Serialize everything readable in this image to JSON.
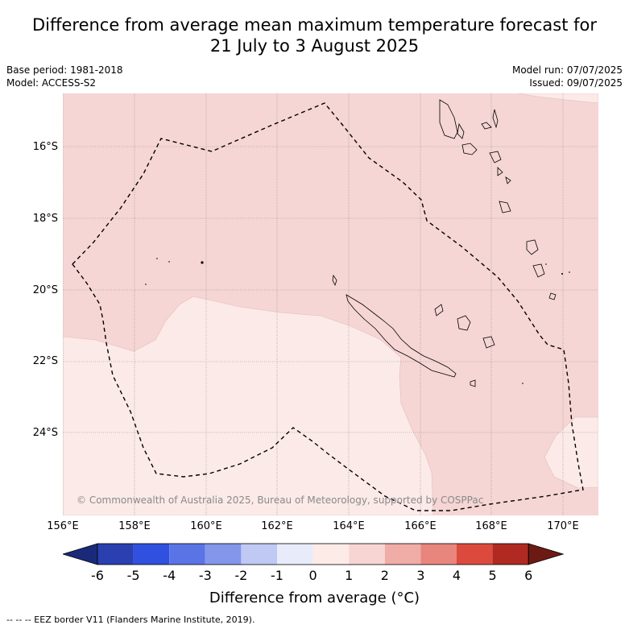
{
  "title_line1": "Difference from average mean maximum temperature forecast for",
  "title_line2": "21 July to 3 August 2025",
  "base_period": "Base period: 1981-2018",
  "model": "Model: ACCESS-S2",
  "model_run": "Model run: 07/07/2025",
  "issued": "Issued: 09/07/2025",
  "copyright": "© Commonwealth of Australia 2025, Bureau of Meteorology, supported by COSPPac",
  "lat_labels": [
    "16°S",
    "18°S",
    "20°S",
    "22°S",
    "24°S"
  ],
  "lon_labels": [
    "156°E",
    "158°E",
    "160°E",
    "162°E",
    "164°E",
    "166°E",
    "168°E",
    "170°E"
  ],
  "colorbar": {
    "labels": [
      "-6",
      "-5",
      "-4",
      "-3",
      "-2",
      "-1",
      "0",
      "1",
      "2",
      "3",
      "4",
      "5",
      "6"
    ],
    "colors": [
      "#1a2a7a",
      "#2a3fb0",
      "#3050e0",
      "#5a74e6",
      "#8496ea",
      "#c0c8f4",
      "#e8ecfa",
      "#fdebe8",
      "#f6d5d2",
      "#f0aca6",
      "#e8857c",
      "#dc4a3e",
      "#b02a22",
      "#6e1a14"
    ],
    "title": "Difference from average (°C)"
  },
  "map_colors": {
    "band_0_1": "#fbeae8",
    "band_1_2": "#f5d6d4"
  },
  "footer": "-- -- -- EEZ border V11 (Flanders Marine Institute, 2019)."
}
